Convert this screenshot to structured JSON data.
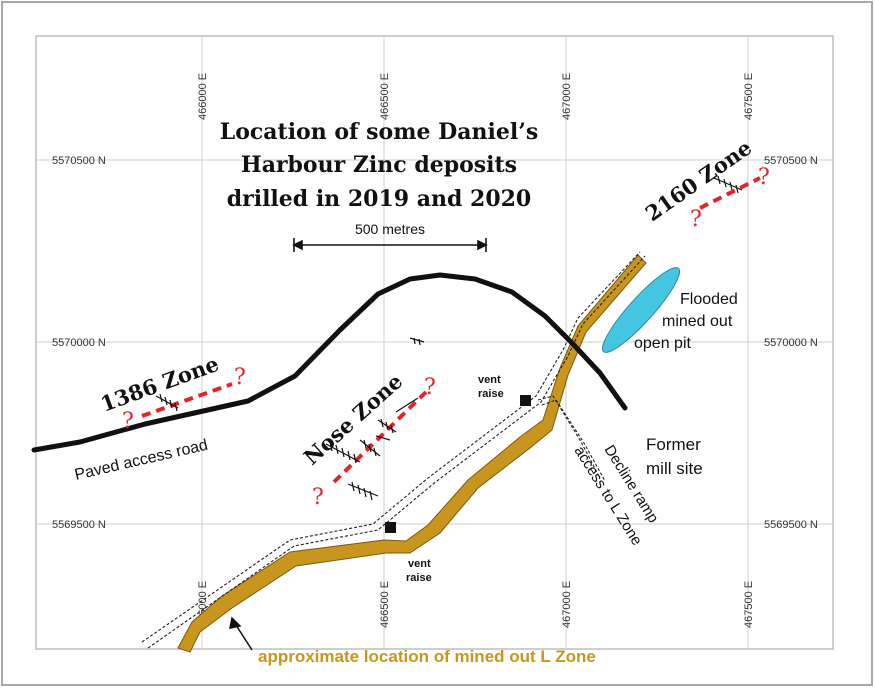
{
  "title_lines": [
    "Location of some Daniel’s",
    "Harbour Zinc deposits",
    "drilled in 2019 and 2020"
  ],
  "grid": {
    "top_eastings": [
      "466000 E",
      "466500 E",
      "467000 E",
      "467500 E"
    ],
    "bottom_eastings": [
      "466000 E",
      "466500 E",
      "467000 E",
      "467500 E"
    ],
    "left_northings": [
      "5570500 N",
      "5570000 N",
      "5569500 N"
    ],
    "right_northings": [
      "5570500 N",
      "5570000 N",
      "5569500 N"
    ]
  },
  "scale_bar": {
    "label": "500 metres"
  },
  "zones": {
    "zone_1386": {
      "label": "1386 Zone"
    },
    "nose": {
      "label": "Nose Zone"
    },
    "zone_2160": {
      "label": "2160 Zone"
    }
  },
  "question_mark": "?",
  "labels": {
    "paved_road": "Paved access road",
    "flooded_pit": [
      "Flooded",
      "mined out",
      "open pit"
    ],
    "mill_site": [
      "Former",
      "mill site"
    ],
    "decline": [
      "Decline ramp",
      "access to L Zone"
    ],
    "vent_raise_upper": [
      "vent",
      "raise"
    ],
    "vent_raise_lower": [
      "vent",
      "raise"
    ],
    "l_zone": "approximate location of mined out L Zone"
  },
  "colors": {
    "road": "#111111",
    "l_zone_fill": "#c8961e",
    "pit_fill": "#45c6e0",
    "zone_trend": "#e0262a",
    "grid": "#c9c9c9",
    "frame": "#9a9a9a"
  }
}
